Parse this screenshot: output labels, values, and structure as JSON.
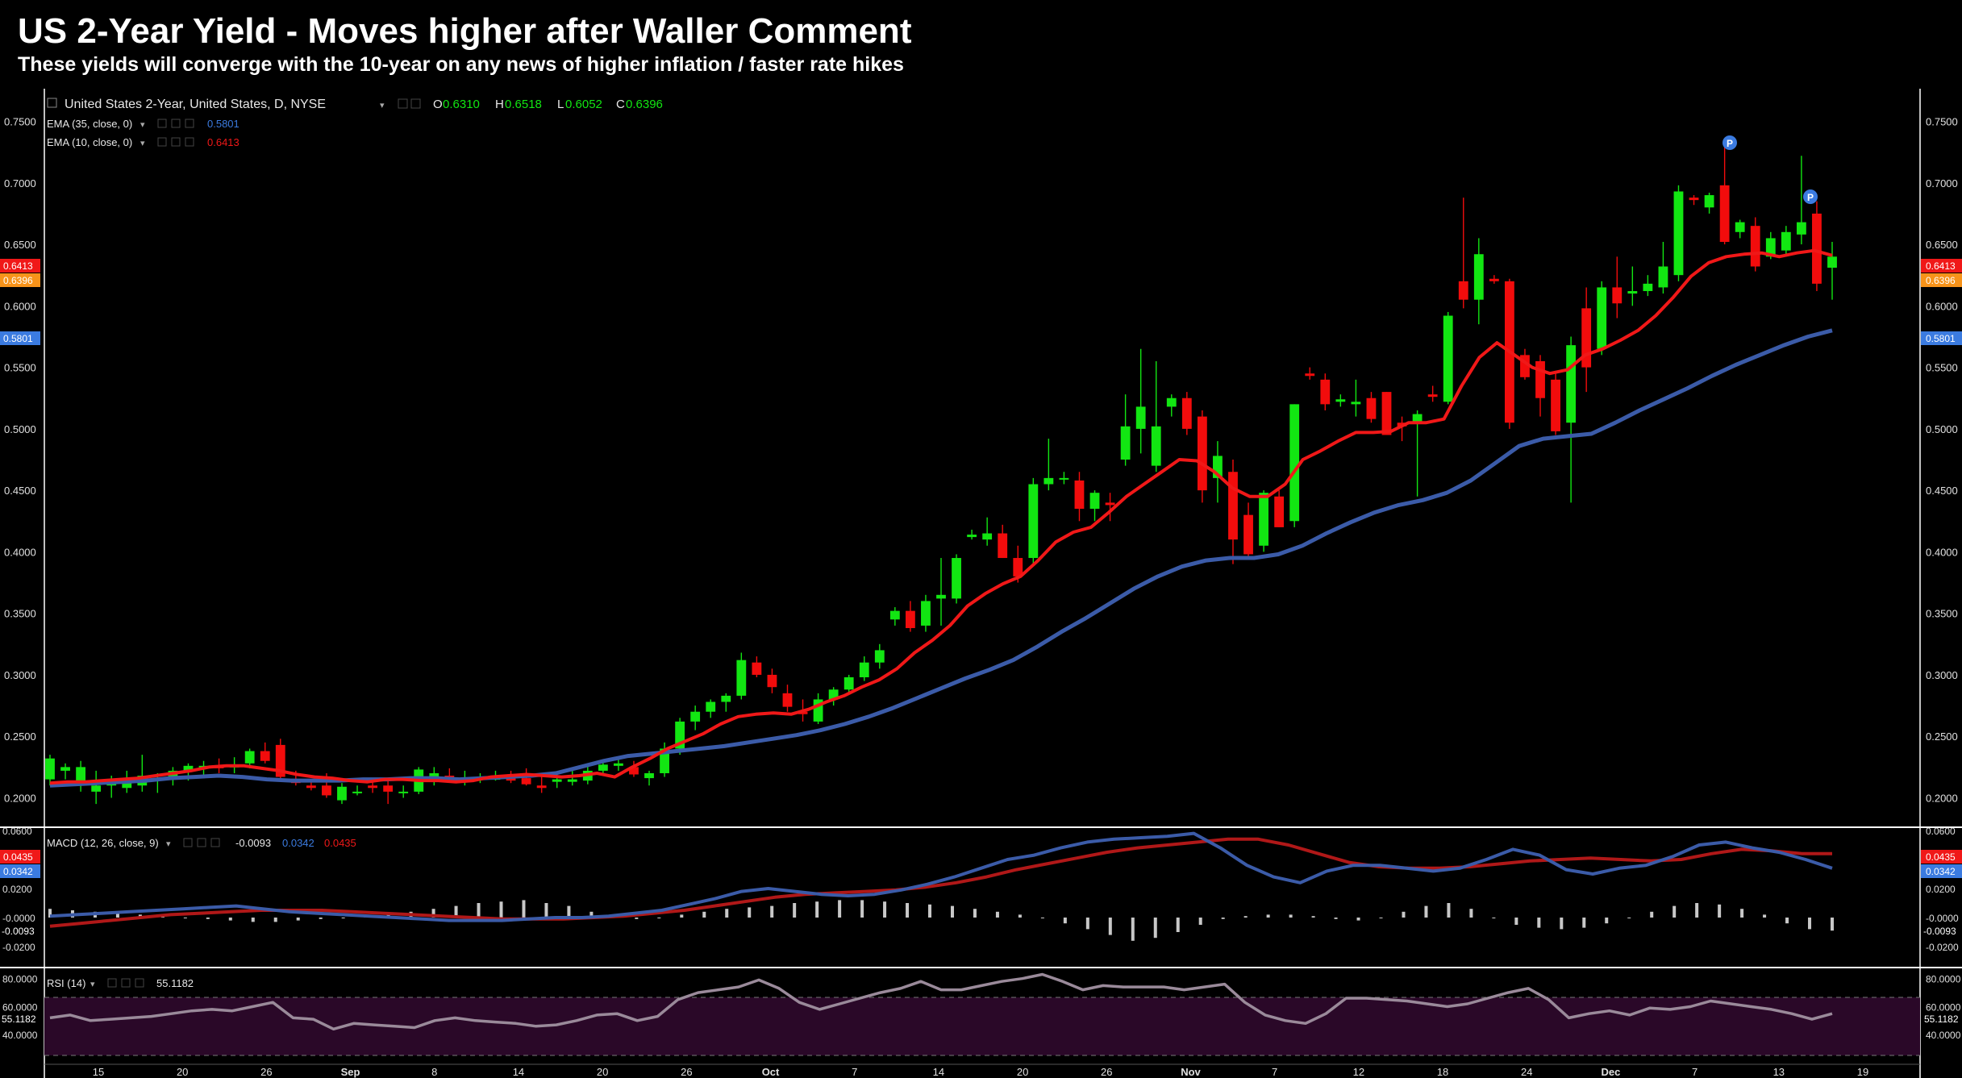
{
  "headline": "US 2-Year Yield - Moves higher after Waller Comment",
  "subhead": "These yields will converge with the 10-year on any news of higher inflation / faster rate hikes",
  "colors": {
    "background": "#000000",
    "up": "#12e612",
    "down": "#f20c0c",
    "ema10": "#f01818",
    "ema35": "#3b5ba8",
    "macd_line": "#3b5ba8",
    "signal_line": "#b01818",
    "histogram": "#c8c8c8",
    "rsi_line": "#9a8a9a",
    "rsi_band": "#2a0828",
    "grid_axis": "#ffffff",
    "close_tag": "#f7931a",
    "ema10_tag": "#f01818",
    "ema35_tag": "#3b7be0",
    "marker": "#3b7be0"
  },
  "legend": {
    "symbol": "United States 2-Year, United States, D, NYSE",
    "o_label": "O",
    "o_value": "0.6310",
    "h_label": "H",
    "h_value": "0.6518",
    "l_label": "L",
    "l_value": "0.6052",
    "c_label": "C",
    "c_value": "0.6396",
    "ema35_label": "EMA (35, close, 0)",
    "ema35_value": "0.5801",
    "ema10_label": "EMA (10, close, 0)",
    "ema10_value": "0.6413",
    "macd_label": "MACD (12, 26, close, 9)",
    "macd_hist": "-0.0093",
    "macd_line": "0.0342",
    "macd_signal": "0.0435",
    "rsi_label": "RSI (14)",
    "rsi_value": "55.1182"
  },
  "price_tags": {
    "ema10": "0.6413",
    "close": "0.6396",
    "ema35": "0.5801"
  },
  "macd_tags": {
    "signal": "0.0435",
    "macd": "0.0342",
    "hist": "-0.0093"
  },
  "rsi_tag": "55.1182",
  "marker_label": "P",
  "chart_data": {
    "type": "candlestick",
    "title": "US 2-Year Yield - Moves higher after Waller Comment",
    "x_ticks": [
      "15",
      "20",
      "26",
      "Sep",
      "8",
      "14",
      "20",
      "26",
      "Oct",
      "7",
      "14",
      "20",
      "26",
      "Nov",
      "7",
      "12",
      "18",
      "24",
      "Dec",
      "7",
      "13",
      "19"
    ],
    "price_axis": {
      "ticks": [
        "0.2000",
        "0.2500",
        "0.3000",
        "0.3500",
        "0.4000",
        "0.4500",
        "0.5000",
        "0.5500",
        "0.6000",
        "0.6500",
        "0.7000",
        "0.7500"
      ],
      "ylim": [
        0.18,
        0.77
      ]
    },
    "macd_axis": {
      "ticks": [
        "0.0600",
        "0.0400",
        "0.0200",
        "-0.0000",
        "-0.0200"
      ],
      "ylim": [
        -0.03,
        0.06
      ]
    },
    "rsi_axis": {
      "ticks": [
        "80.0000",
        "60.0000",
        "40.0000"
      ],
      "ylim": [
        20,
        85
      ],
      "bands": [
        70,
        30
      ]
    },
    "candles": [
      [
        0.215,
        0.235,
        0.21,
        0.232
      ],
      [
        0.222,
        0.228,
        0.215,
        0.225
      ],
      [
        0.21,
        0.23,
        0.205,
        0.225
      ],
      [
        0.205,
        0.222,
        0.195,
        0.21
      ],
      [
        0.21,
        0.218,
        0.2,
        0.212
      ],
      [
        0.208,
        0.222,
        0.204,
        0.215
      ],
      [
        0.21,
        0.235,
        0.205,
        0.218
      ],
      [
        0.214,
        0.22,
        0.204,
        0.216
      ],
      [
        0.216,
        0.225,
        0.21,
        0.222
      ],
      [
        0.222,
        0.228,
        0.214,
        0.226
      ],
      [
        0.224,
        0.23,
        0.218,
        0.226
      ],
      [
        0.226,
        0.232,
        0.22,
        0.224
      ],
      [
        0.226,
        0.233,
        0.22,
        0.226
      ],
      [
        0.228,
        0.24,
        0.224,
        0.238
      ],
      [
        0.238,
        0.245,
        0.228,
        0.23
      ],
      [
        0.243,
        0.248,
        0.214,
        0.217
      ],
      [
        0.215,
        0.222,
        0.21,
        0.212
      ],
      [
        0.21,
        0.215,
        0.206,
        0.208
      ],
      [
        0.21,
        0.22,
        0.2,
        0.202
      ],
      [
        0.198,
        0.212,
        0.195,
        0.209
      ],
      [
        0.205,
        0.21,
        0.202,
        0.205
      ],
      [
        0.21,
        0.215,
        0.204,
        0.208
      ],
      [
        0.21,
        0.215,
        0.195,
        0.205
      ],
      [
        0.205,
        0.21,
        0.2,
        0.205
      ],
      [
        0.205,
        0.225,
        0.203,
        0.223
      ],
      [
        0.215,
        0.225,
        0.21,
        0.22
      ],
      [
        0.218,
        0.224,
        0.214,
        0.214
      ],
      [
        0.215,
        0.222,
        0.21,
        0.216
      ],
      [
        0.215,
        0.22,
        0.212,
        0.216
      ],
      [
        0.216,
        0.222,
        0.214,
        0.216
      ],
      [
        0.218,
        0.222,
        0.212,
        0.214
      ],
      [
        0.216,
        0.224,
        0.21,
        0.211
      ],
      [
        0.21,
        0.22,
        0.204,
        0.208
      ],
      [
        0.213,
        0.22,
        0.208,
        0.215
      ],
      [
        0.213,
        0.222,
        0.21,
        0.215
      ],
      [
        0.214,
        0.226,
        0.211,
        0.222
      ],
      [
        0.222,
        0.23,
        0.218,
        0.227
      ],
      [
        0.226,
        0.232,
        0.222,
        0.228
      ],
      [
        0.225,
        0.23,
        0.217,
        0.219
      ],
      [
        0.216,
        0.222,
        0.21,
        0.22
      ],
      [
        0.22,
        0.245,
        0.217,
        0.24
      ],
      [
        0.24,
        0.265,
        0.235,
        0.262
      ],
      [
        0.262,
        0.275,
        0.255,
        0.27
      ],
      [
        0.27,
        0.28,
        0.265,
        0.278
      ],
      [
        0.278,
        0.285,
        0.27,
        0.283
      ],
      [
        0.283,
        0.318,
        0.28,
        0.312
      ],
      [
        0.31,
        0.315,
        0.298,
        0.3
      ],
      [
        0.3,
        0.305,
        0.285,
        0.29
      ],
      [
        0.285,
        0.292,
        0.27,
        0.274
      ],
      [
        0.27,
        0.28,
        0.262,
        0.268
      ],
      [
        0.262,
        0.285,
        0.26,
        0.28
      ],
      [
        0.28,
        0.29,
        0.275,
        0.288
      ],
      [
        0.288,
        0.3,
        0.285,
        0.298
      ],
      [
        0.298,
        0.315,
        0.295,
        0.31
      ],
      [
        0.31,
        0.325,
        0.305,
        0.32
      ],
      [
        0.345,
        0.355,
        0.34,
        0.352
      ],
      [
        0.352,
        0.36,
        0.335,
        0.338
      ],
      [
        0.34,
        0.365,
        0.335,
        0.36
      ],
      [
        0.362,
        0.395,
        0.34,
        0.365
      ],
      [
        0.362,
        0.398,
        0.358,
        0.395
      ],
      [
        0.412,
        0.418,
        0.41,
        0.414
      ],
      [
        0.41,
        0.428,
        0.405,
        0.415
      ],
      [
        0.415,
        0.422,
        0.395,
        0.395
      ],
      [
        0.395,
        0.405,
        0.375,
        0.38
      ],
      [
        0.395,
        0.46,
        0.39,
        0.455
      ],
      [
        0.455,
        0.492,
        0.45,
        0.46
      ],
      [
        0.46,
        0.465,
        0.455,
        0.46
      ],
      [
        0.458,
        0.465,
        0.425,
        0.435
      ],
      [
        0.435,
        0.45,
        0.425,
        0.448
      ],
      [
        0.44,
        0.448,
        0.425,
        0.438
      ],
      [
        0.475,
        0.528,
        0.47,
        0.502
      ],
      [
        0.5,
        0.565,
        0.48,
        0.518
      ],
      [
        0.47,
        0.555,
        0.465,
        0.502
      ],
      [
        0.518,
        0.528,
        0.51,
        0.525
      ],
      [
        0.525,
        0.53,
        0.495,
        0.5
      ],
      [
        0.51,
        0.515,
        0.44,
        0.45
      ],
      [
        0.46,
        0.49,
        0.44,
        0.478
      ],
      [
        0.465,
        0.475,
        0.39,
        0.41
      ],
      [
        0.43,
        0.44,
        0.395,
        0.398
      ],
      [
        0.405,
        0.45,
        0.4,
        0.448
      ],
      [
        0.445,
        0.45,
        0.42,
        0.42
      ],
      [
        0.425,
        0.52,
        0.42,
        0.52
      ],
      [
        0.545,
        0.55,
        0.54,
        0.543
      ],
      [
        0.54,
        0.545,
        0.515,
        0.52
      ],
      [
        0.522,
        0.528,
        0.518,
        0.524
      ],
      [
        0.52,
        0.54,
        0.51,
        0.522
      ],
      [
        0.525,
        0.53,
        0.505,
        0.508
      ],
      [
        0.53,
        0.53,
        0.495,
        0.495
      ],
      [
        0.505,
        0.51,
        0.49,
        0.502
      ],
      [
        0.505,
        0.515,
        0.445,
        0.512
      ],
      [
        0.528,
        0.535,
        0.522,
        0.526
      ],
      [
        0.522,
        0.595,
        0.52,
        0.592
      ],
      [
        0.62,
        0.688,
        0.598,
        0.605
      ],
      [
        0.605,
        0.655,
        0.585,
        0.642
      ],
      [
        0.622,
        0.625,
        0.618,
        0.62
      ],
      [
        0.62,
        0.622,
        0.5,
        0.505
      ],
      [
        0.56,
        0.565,
        0.54,
        0.542
      ],
      [
        0.555,
        0.56,
        0.51,
        0.525
      ],
      [
        0.54,
        0.545,
        0.495,
        0.498
      ],
      [
        0.505,
        0.575,
        0.44,
        0.568
      ],
      [
        0.598,
        0.615,
        0.53,
        0.55
      ],
      [
        0.565,
        0.62,
        0.56,
        0.615
      ],
      [
        0.615,
        0.64,
        0.59,
        0.602
      ],
      [
        0.61,
        0.632,
        0.6,
        0.612
      ],
      [
        0.612,
        0.625,
        0.608,
        0.618
      ],
      [
        0.615,
        0.652,
        0.61,
        0.632
      ],
      [
        0.625,
        0.698,
        0.62,
        0.693
      ],
      [
        0.688,
        0.69,
        0.682,
        0.686
      ],
      [
        0.68,
        0.692,
        0.675,
        0.69
      ],
      [
        0.698,
        0.732,
        0.65,
        0.652
      ],
      [
        0.66,
        0.67,
        0.655,
        0.668
      ],
      [
        0.665,
        0.672,
        0.628,
        0.632
      ],
      [
        0.64,
        0.66,
        0.638,
        0.655
      ],
      [
        0.645,
        0.665,
        0.64,
        0.66
      ],
      [
        0.658,
        0.722,
        0.65,
        0.668
      ],
      [
        0.675,
        0.685,
        0.612,
        0.618
      ],
      [
        0.631,
        0.652,
        0.605,
        0.64
      ]
    ],
    "ema10": [
      0.212,
      0.213,
      0.213,
      0.214,
      0.215,
      0.216,
      0.218,
      0.22,
      0.222,
      0.225,
      0.226,
      0.226,
      0.224,
      0.222,
      0.219,
      0.217,
      0.216,
      0.214,
      0.213,
      0.215,
      0.215,
      0.214,
      0.214,
      0.213,
      0.214,
      0.217,
      0.218,
      0.219,
      0.218,
      0.217,
      0.218,
      0.22,
      0.217,
      0.225,
      0.232,
      0.24,
      0.246,
      0.252,
      0.26,
      0.266,
      0.268,
      0.269,
      0.268,
      0.272,
      0.278,
      0.283,
      0.29,
      0.296,
      0.305,
      0.318,
      0.328,
      0.34,
      0.356,
      0.366,
      0.374,
      0.38,
      0.393,
      0.408,
      0.416,
      0.42,
      0.432,
      0.445,
      0.455,
      0.465,
      0.475,
      0.474,
      0.465,
      0.452,
      0.445,
      0.445,
      0.455,
      0.475,
      0.482,
      0.49,
      0.497,
      0.497,
      0.498,
      0.505,
      0.505,
      0.508,
      0.535,
      0.558,
      0.57,
      0.56,
      0.55,
      0.545,
      0.548,
      0.56,
      0.565,
      0.572,
      0.58,
      0.592,
      0.607,
      0.624,
      0.635,
      0.64,
      0.642,
      0.643,
      0.64,
      0.643,
      0.645,
      0.641
    ],
    "ema35": [
      0.21,
      0.211,
      0.212,
      0.213,
      0.214,
      0.216,
      0.217,
      0.218,
      0.217,
      0.215,
      0.214,
      0.214,
      0.214,
      0.215,
      0.215,
      0.216,
      0.216,
      0.215,
      0.216,
      0.217,
      0.218,
      0.22,
      0.225,
      0.23,
      0.234,
      0.236,
      0.238,
      0.24,
      0.242,
      0.245,
      0.248,
      0.251,
      0.255,
      0.26,
      0.266,
      0.273,
      0.281,
      0.289,
      0.297,
      0.304,
      0.312,
      0.323,
      0.335,
      0.346,
      0.358,
      0.37,
      0.38,
      0.388,
      0.393,
      0.395,
      0.395,
      0.398,
      0.405,
      0.415,
      0.424,
      0.432,
      0.438,
      0.442,
      0.448,
      0.458,
      0.472,
      0.486,
      0.492,
      0.494,
      0.496,
      0.505,
      0.515,
      0.524,
      0.533,
      0.543,
      0.552,
      0.56,
      0.568,
      0.575,
      0.58
    ],
    "macd": [
      0.001,
      0.002,
      0.003,
      0.004,
      0.005,
      0.006,
      0.007,
      0.008,
      0.006,
      0.004,
      0.003,
      0.002,
      0.001,
      0.0,
      -0.001,
      -0.002,
      -0.002,
      -0.002,
      -0.001,
      0.0,
      0.0,
      0.001,
      0.003,
      0.005,
      0.009,
      0.013,
      0.018,
      0.02,
      0.018,
      0.016,
      0.015,
      0.016,
      0.019,
      0.023,
      0.028,
      0.034,
      0.04,
      0.043,
      0.048,
      0.052,
      0.054,
      0.055,
      0.056,
      0.058,
      0.048,
      0.036,
      0.028,
      0.024,
      0.032,
      0.036,
      0.036,
      0.034,
      0.032,
      0.034,
      0.04,
      0.047,
      0.043,
      0.033,
      0.03,
      0.034,
      0.036,
      0.042,
      0.05,
      0.052,
      0.048,
      0.045,
      0.04,
      0.034
    ],
    "signal": [
      -0.006,
      -0.004,
      -0.002,
      0.0,
      0.002,
      0.003,
      0.004,
      0.005,
      0.005,
      0.005,
      0.004,
      0.003,
      0.002,
      0.001,
      0.0,
      -0.001,
      -0.001,
      -0.001,
      0.0,
      0.001,
      0.003,
      0.005,
      0.008,
      0.011,
      0.014,
      0.016,
      0.017,
      0.018,
      0.019,
      0.021,
      0.024,
      0.028,
      0.033,
      0.037,
      0.041,
      0.045,
      0.048,
      0.05,
      0.052,
      0.054,
      0.054,
      0.05,
      0.044,
      0.038,
      0.035,
      0.034,
      0.034,
      0.035,
      0.037,
      0.039,
      0.04,
      0.041,
      0.04,
      0.039,
      0.04,
      0.044,
      0.047,
      0.046,
      0.044,
      0.044
    ],
    "histogram": [
      0.006,
      0.005,
      0.004,
      0.003,
      0.002,
      0.001,
      0.0,
      -0.001,
      -0.002,
      -0.003,
      -0.003,
      -0.002,
      -0.001,
      0.0,
      0.001,
      0.002,
      0.004,
      0.006,
      0.008,
      0.01,
      0.011,
      0.012,
      0.01,
      0.008,
      0.004,
      0.001,
      -0.001,
      0.0,
      0.002,
      0.004,
      0.006,
      0.007,
      0.008,
      0.01,
      0.011,
      0.012,
      0.012,
      0.011,
      0.01,
      0.009,
      0.008,
      0.006,
      0.004,
      0.002,
      0.0,
      -0.004,
      -0.008,
      -0.012,
      -0.016,
      -0.014,
      -0.01,
      -0.005,
      -0.001,
      0.001,
      0.002,
      0.002,
      0.001,
      -0.001,
      -0.002,
      0.0,
      0.004,
      0.008,
      0.01,
      0.006,
      0.0,
      -0.005,
      -0.007,
      -0.008,
      -0.007,
      -0.004,
      0.0,
      0.004,
      0.008,
      0.01,
      0.009,
      0.006,
      0.002,
      -0.004,
      -0.008,
      -0.009
    ],
    "rsi": [
      52,
      54,
      50,
      51,
      52,
      53,
      55,
      57,
      58,
      57,
      60,
      63,
      52,
      51,
      44,
      48,
      47,
      46,
      45,
      50,
      52,
      50,
      49,
      48,
      46,
      47,
      50,
      54,
      55,
      50,
      53,
      65,
      70,
      72,
      74,
      79,
      73,
      63,
      58,
      62,
      66,
      70,
      73,
      78,
      72,
      72,
      75,
      78,
      80,
      83,
      78,
      72,
      75,
      74,
      74,
      74,
      72,
      74,
      76,
      63,
      54,
      50,
      48,
      55,
      66,
      66,
      65,
      64,
      62,
      60,
      62,
      66,
      70,
      73,
      65,
      52,
      55,
      57,
      54,
      59,
      58,
      60,
      64,
      62,
      60,
      58,
      55,
      51,
      55
    ]
  }
}
